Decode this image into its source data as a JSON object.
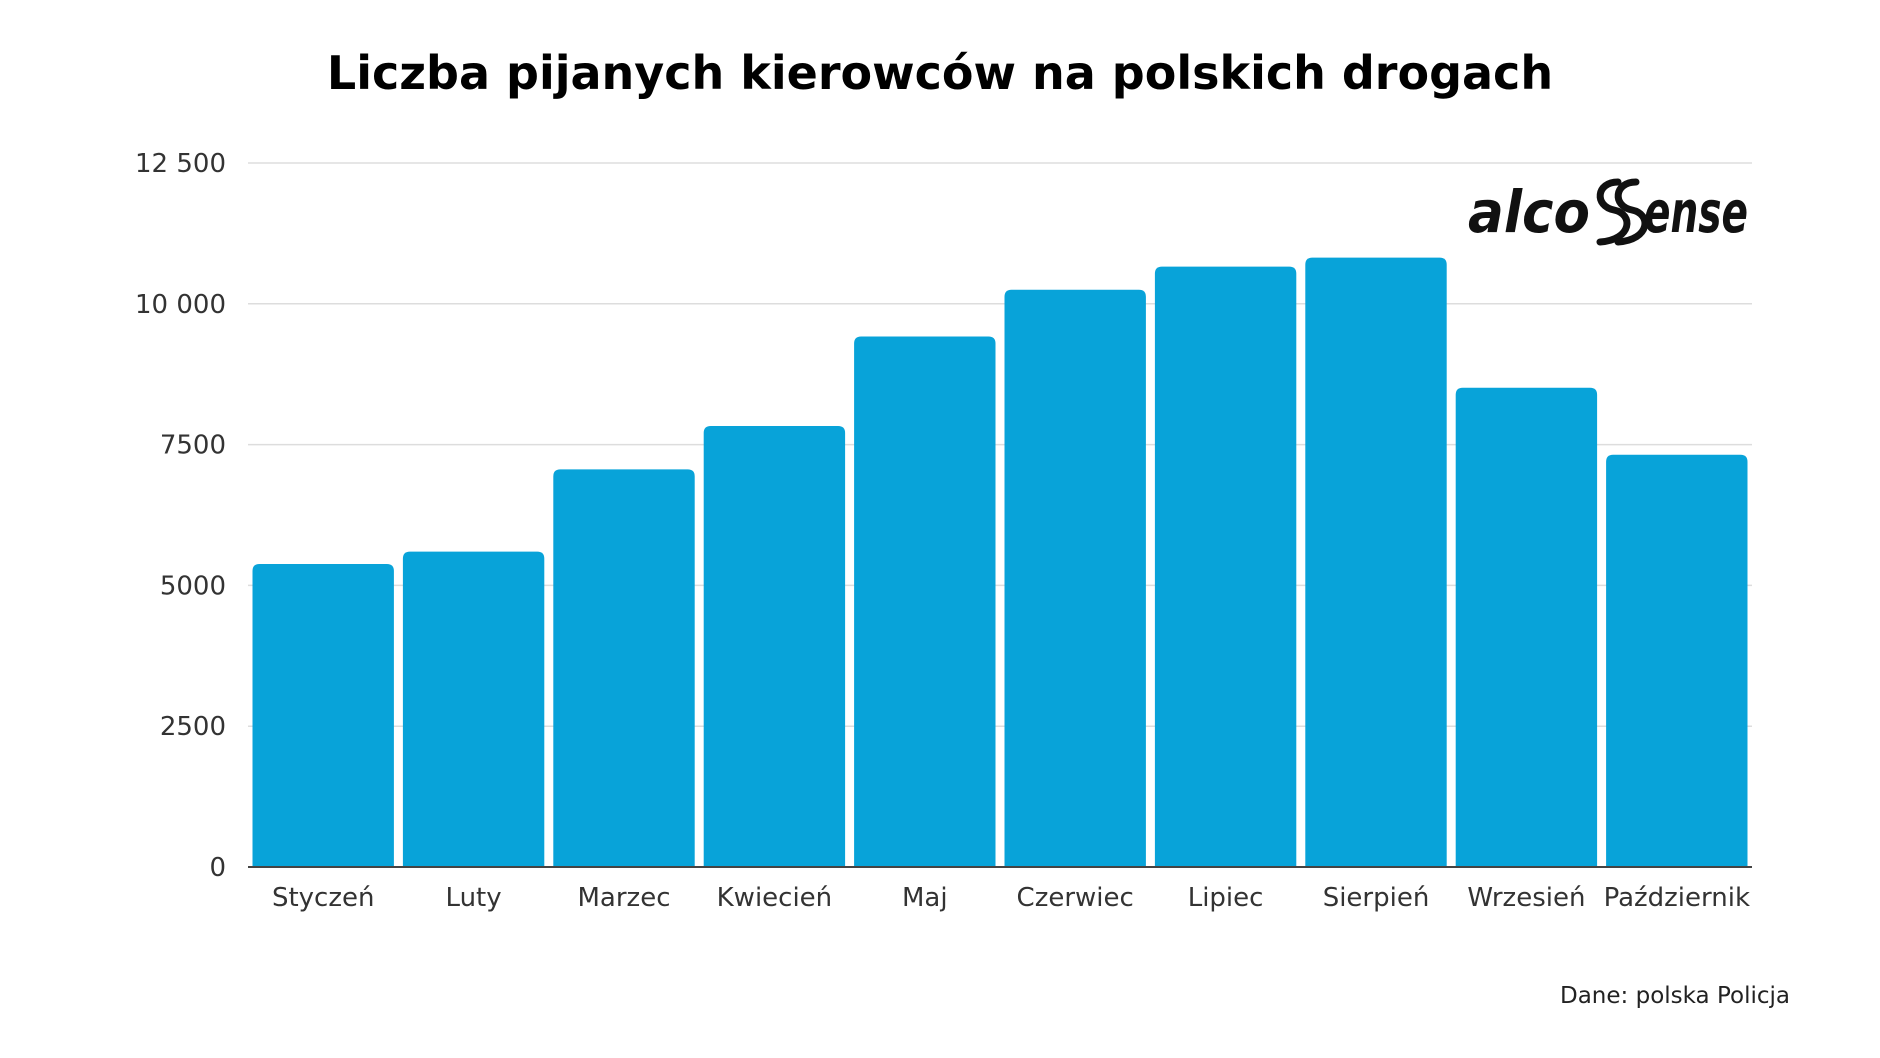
{
  "chart_data": {
    "type": "bar",
    "title": "Liczba pijanych kierowców na polskich drogach",
    "categories": [
      "Styczeń",
      "Luty",
      "Marzec",
      "Kwiecień",
      "Maj",
      "Czerwiec",
      "Lipiec",
      "Sierpień",
      "Wrzesień",
      "Październik"
    ],
    "values": [
      5380,
      5600,
      7060,
      7830,
      9420,
      10250,
      10660,
      10820,
      8510,
      7320
    ],
    "ylim": [
      0,
      12500
    ],
    "yticks": [
      0,
      2500,
      5000,
      7500,
      10000,
      12500
    ],
    "ytick_labels": [
      "0",
      "2500",
      "5000",
      "7500",
      "10 000",
      "12 500"
    ],
    "xlabel": "",
    "ylabel": "",
    "grid": true,
    "bar_color": "#08A3D9",
    "grid_color": "#DDDDDD",
    "axis_color": "#444444"
  },
  "logo": {
    "part1": "alco",
    "part2": "ense",
    "icon": "double-s-swoosh-icon"
  },
  "source_note": "Dane: polska Policja"
}
